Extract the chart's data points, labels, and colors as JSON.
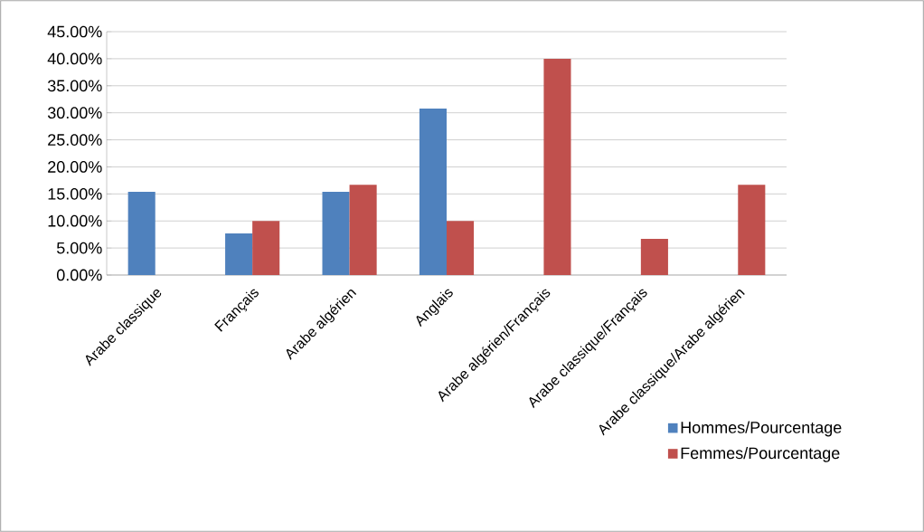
{
  "chart_data": {
    "type": "bar",
    "categories": [
      "Arabe classique",
      "Français",
      "Arabe algérien",
      "Anglais",
      "Arabe algérien/Français",
      "Arabe classique/Français",
      "Arabe classique/Arabe algérien"
    ],
    "series": [
      {
        "name": "Hommes/Pourcentage",
        "color": "#4f81bd",
        "values": [
          15.4,
          7.7,
          15.4,
          30.8,
          null,
          null,
          null
        ]
      },
      {
        "name": "Femmes/Pourcentage",
        "color": "#c0504d",
        "values": [
          null,
          10,
          16.7,
          10,
          40,
          6.7,
          16.7
        ]
      }
    ],
    "ylim": [
      0,
      45
    ],
    "yticks": [
      {
        "value": 0,
        "label": "0.00%"
      },
      {
        "value": 5,
        "label": "5.00%"
      },
      {
        "value": 10,
        "label": "10.00%"
      },
      {
        "value": 15,
        "label": "15.00%"
      },
      {
        "value": 20,
        "label": "20.00%"
      },
      {
        "value": 25,
        "label": "25.00%"
      },
      {
        "value": 30,
        "label": "30.00%"
      },
      {
        "value": 35,
        "label": "35.00%"
      },
      {
        "value": 40,
        "label": "40.00%"
      },
      {
        "value": 45,
        "label": "45.00%"
      }
    ],
    "grid": "y",
    "legend": "bottom right"
  }
}
